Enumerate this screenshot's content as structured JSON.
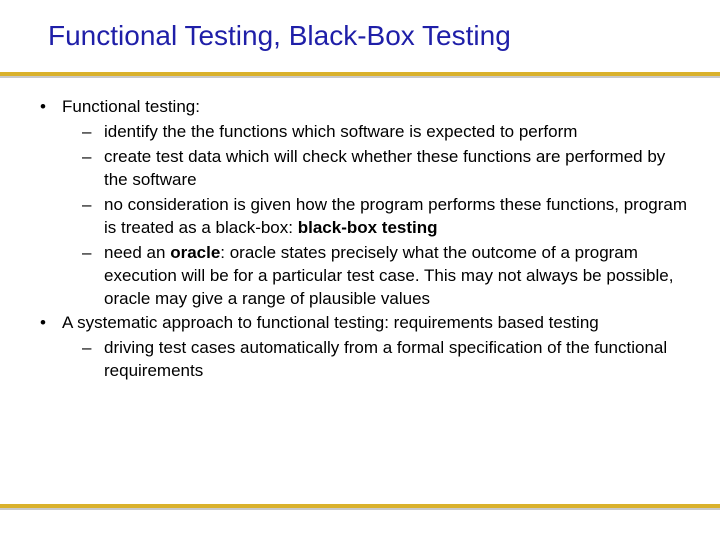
{
  "title": "Functional Testing, Black-Box Testing",
  "colors": {
    "title_color": "#1f1fa8",
    "body_color": "#000000",
    "rule_gold": "#d9b12c",
    "rule_shadow": "#c9c9c9",
    "background": "#ffffff"
  },
  "typography": {
    "title_fontsize": 28,
    "body_fontsize": 17,
    "font_family": "Arial"
  },
  "bullets": {
    "l1_marker": "•",
    "l2_marker": "–"
  },
  "items": [
    {
      "text": "Functional testing:",
      "sub": [
        {
          "text": "identify the the functions which software is expected to perform"
        },
        {
          "text": "create test data which will check whether these functions are performed by the software"
        },
        {
          "text_pre": "no consideration is given how the program performs these functions, program is treated as a black-box: ",
          "bold": "black-box testing"
        },
        {
          "text_pre": "need an ",
          "bold": "oracle",
          "text_post": ": oracle states precisely what the outcome of a program execution will be for a particular test case. This may not always be possible, oracle may give a range of plausible values"
        }
      ]
    },
    {
      "text": "A systematic approach to functional testing: requirements based testing",
      "sub": [
        {
          "text": "driving test cases automatically from a formal specification of the functional requirements"
        }
      ]
    }
  ]
}
